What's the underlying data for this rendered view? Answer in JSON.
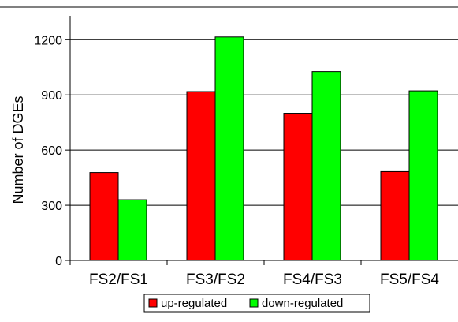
{
  "chart_data": {
    "type": "bar",
    "title": "",
    "xlabel": "",
    "ylabel": "Number of DGEs",
    "categories": [
      "FS2/FS1",
      "FS3/FS2",
      "FS4/FS3",
      "FS5/FS4"
    ],
    "series": [
      {
        "name": "up-regulated",
        "color": "#ff0000",
        "values": [
          478,
          918,
          800,
          483
        ]
      },
      {
        "name": "down-regulated",
        "color": "#00ff00",
        "values": [
          330,
          1215,
          1027,
          922
        ]
      }
    ],
    "yticks": [
      0,
      300,
      600,
      900,
      1200
    ],
    "ylim": [
      0,
      1330
    ],
    "grid": true,
    "legend_position": "bottom"
  }
}
